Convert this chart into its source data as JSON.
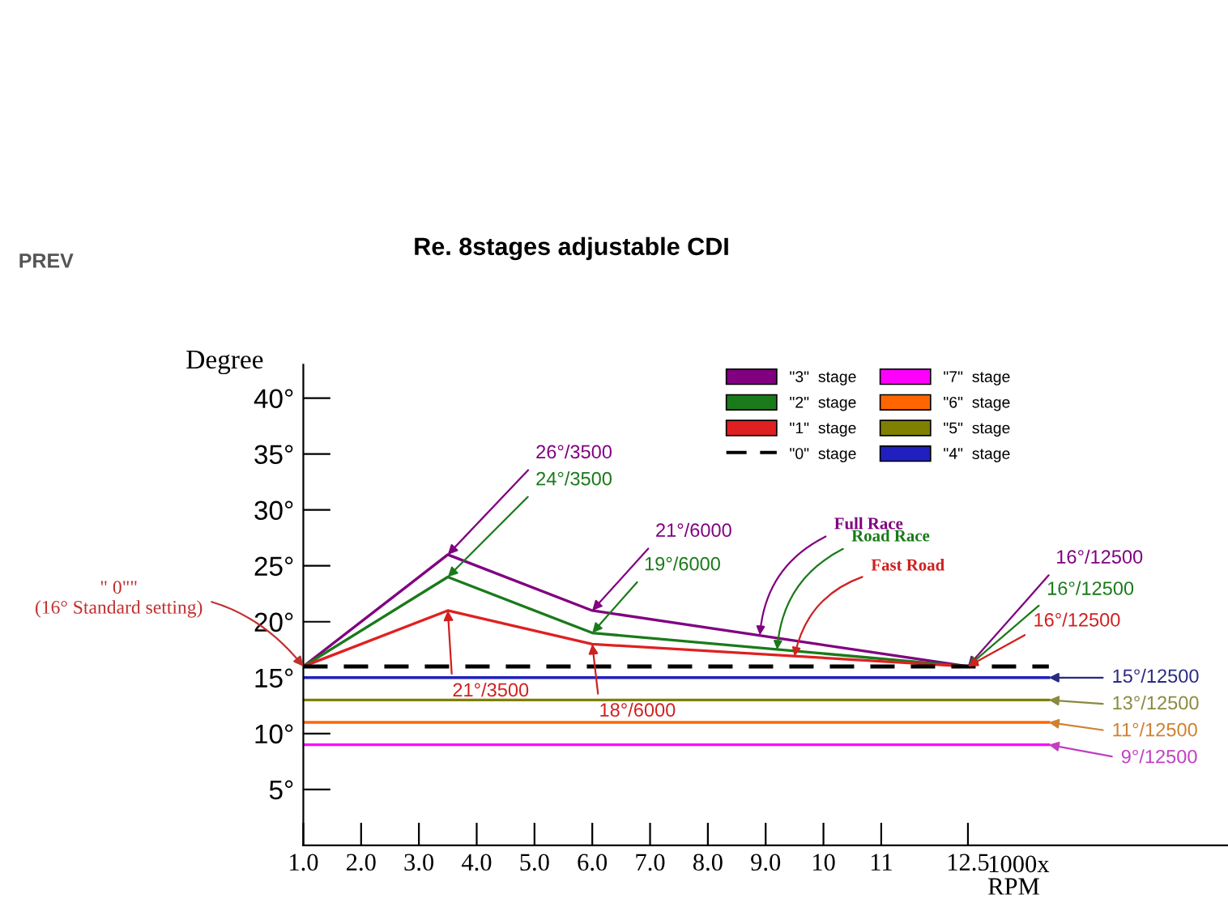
{
  "chart_data": {
    "type": "line",
    "title": "Re. 8stages adjustable CDI",
    "xlabel": "1000x\nRPM",
    "ylabel": "Degree",
    "xlim": [
      1,
      17
    ],
    "ylim": [
      0,
      43
    ],
    "xticks": [
      {
        "value": 1,
        "label": "1.0"
      },
      {
        "value": 2,
        "label": "2.0"
      },
      {
        "value": 3,
        "label": "3.0"
      },
      {
        "value": 4,
        "label": "4.0"
      },
      {
        "value": 5,
        "label": "5.0"
      },
      {
        "value": 6,
        "label": "6.0"
      },
      {
        "value": 7,
        "label": "7.0"
      },
      {
        "value": 8,
        "label": "8.0"
      },
      {
        "value": 9,
        "label": "9.0"
      },
      10,
      11,
      12.5
    ],
    "yticks": [
      {
        "value": 5,
        "label": "5°"
      },
      {
        "value": 10,
        "label": "10°"
      },
      {
        "value": 15,
        "label": "15°"
      },
      {
        "value": 20,
        "label": "20°"
      },
      {
        "value": 25,
        "label": "25°"
      },
      {
        "value": 30,
        "label": "30°"
      },
      {
        "value": 35,
        "label": "35°"
      },
      {
        "value": 40,
        "label": "40°"
      }
    ],
    "legend": "top right",
    "grid": false,
    "marker": "none",
    "series": [
      {
        "name": "\"3\"  stage",
        "color": "#800080",
        "x": [
          1,
          3.5,
          6,
          12.5
        ],
        "values": [
          16,
          26,
          21,
          16
        ]
      },
      {
        "name": "\"2\"  stage",
        "color": "#1a7a1a",
        "x": [
          1,
          3.5,
          6,
          12.5
        ],
        "values": [
          16,
          24,
          19,
          16
        ]
      },
      {
        "name": "\"1\"  stage",
        "color": "#e02020",
        "x": [
          1,
          3.5,
          6,
          12.5
        ],
        "values": [
          16,
          21,
          18,
          16
        ]
      },
      {
        "name": "\"0\"  stage",
        "color": "#000000",
        "line_style": "dashed",
        "x": [
          1,
          13.9
        ],
        "values": [
          16,
          16
        ]
      },
      {
        "name": "\"7\"  stage",
        "color": "#ff00ff",
        "x": [
          1,
          13.9
        ],
        "values": [
          9,
          9
        ]
      },
      {
        "name": "\"6\"  stage",
        "color": "#ff6600",
        "x": [
          1,
          13.9
        ],
        "values": [
          11,
          11
        ]
      },
      {
        "name": "\"5\"  stage",
        "color": "#808000",
        "x": [
          1,
          13.9
        ],
        "values": [
          13,
          13
        ]
      },
      {
        "name": "\"4\"  stage",
        "color": "#2020c0",
        "x": [
          1,
          13.9
        ],
        "values": [
          15,
          15
        ]
      }
    ],
    "annotations": [
      {
        "text": "26°/3500",
        "x": 3.5,
        "y": 26
      },
      {
        "text": "24°/3500",
        "x": 3.5,
        "y": 24
      },
      {
        "text": "21°/6000",
        "x": 6,
        "y": 21
      },
      {
        "text": "19°/6000",
        "x": 6,
        "y": 19
      },
      {
        "text": "21°/3500",
        "x": 3.5,
        "y": 21
      },
      {
        "text": "18°/6000",
        "x": 6,
        "y": 18
      },
      {
        "text": "Full Race",
        "x": 8.9,
        "y": 18.8
      },
      {
        "text": "Road Race",
        "x": 9.2,
        "y": 17.5
      },
      {
        "text": "Fast Road",
        "x": 9.5,
        "y": 16.9
      },
      {
        "text": "16°/12500",
        "x": 12.5,
        "y": 16
      },
      {
        "text": "16°/12500",
        "x": 12.5,
        "y": 16
      },
      {
        "text": "16°/12500",
        "x": 12.5,
        "y": 16
      },
      {
        "text": "15°/12500",
        "x": 13.9,
        "y": 15
      },
      {
        "text": "13°/12500",
        "x": 13.9,
        "y": 13
      },
      {
        "text": "11°/12500",
        "x": 13.9,
        "y": 11
      },
      {
        "text": "9°/12500",
        "x": 13.9,
        "y": 9
      },
      {
        "text": "\" 0\"\"\n(16° Standard setting)",
        "x": 1,
        "y": 16
      },
      "PREV"
    ]
  }
}
